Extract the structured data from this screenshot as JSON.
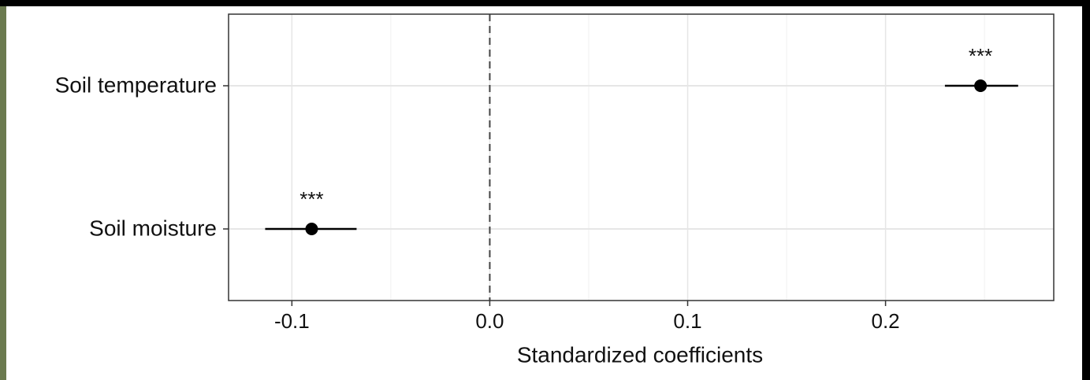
{
  "chart_data": {
    "type": "coefficient",
    "x_label": "Standardized coefficients",
    "categories": [
      "Soil temperature",
      "Soil moisture"
    ],
    "values": [
      0.248,
      -0.09
    ],
    "lower": [
      0.23,
      -0.1135
    ],
    "upper": [
      0.267,
      -0.0673
    ],
    "annotations": [
      "***",
      "***"
    ],
    "color": "#000000",
    "xlim": [
      -0.132,
      0.285
    ],
    "xticks": [
      {
        "value": -0.1,
        "label": "-0.1"
      },
      {
        "value": 0,
        "label": "0.0"
      },
      0.1,
      0.2
    ],
    "minor_xticks": [
      -0.05,
      0.05,
      0.15,
      0.25
    ],
    "reference_line": 0,
    "grid": true
  }
}
